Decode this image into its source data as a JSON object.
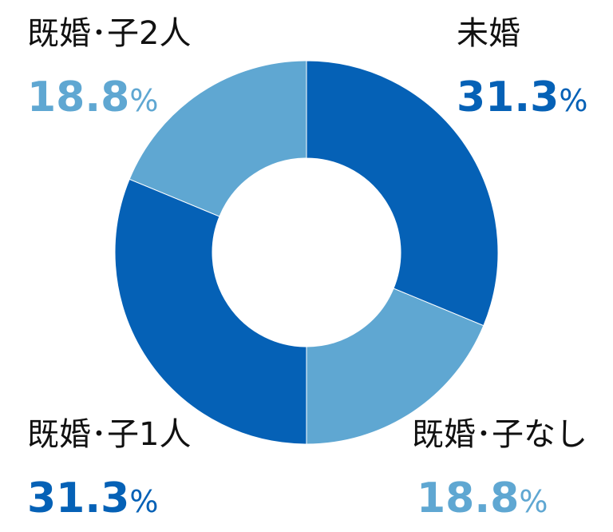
{
  "chart_data": {
    "type": "pie",
    "donut": true,
    "start_angle_deg": 0,
    "direction": "clockwise",
    "slices": [
      {
        "label": "未婚",
        "value": 31.3,
        "display": "31.3",
        "unit": "%",
        "color": "#0561b6"
      },
      {
        "label": "既婚･子なし",
        "value": 18.8,
        "display": "18.8",
        "unit": "%",
        "color": "#5fa7d2"
      },
      {
        "label": "既婚･子1人",
        "value": 31.3,
        "display": "31.3",
        "unit": "%",
        "color": "#0561b6"
      },
      {
        "label": "既婚･子2人",
        "value": 18.8,
        "display": "18.8",
        "unit": "%",
        "color": "#5fa7d2"
      }
    ]
  }
}
